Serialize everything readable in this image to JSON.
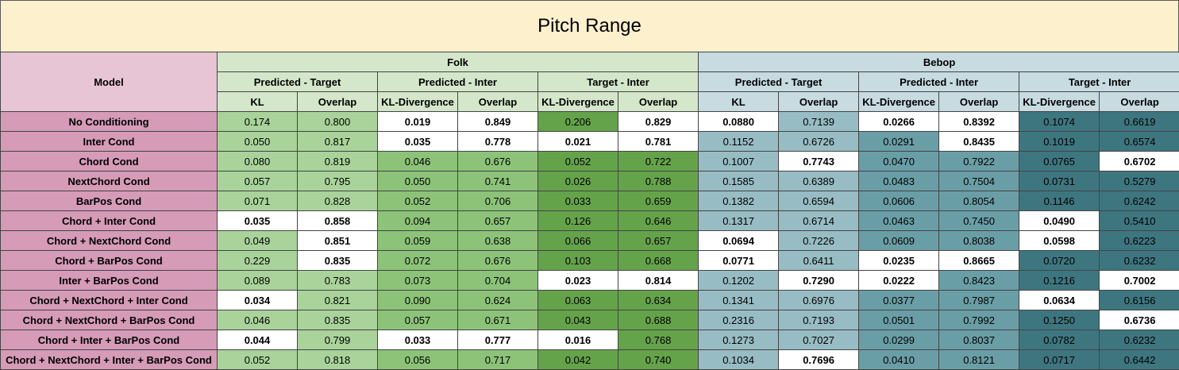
{
  "title": "Pitch Range",
  "header": {
    "model_label": "Model",
    "groups": [
      "Folk",
      "Bebop"
    ],
    "subgroups": [
      "Predicted - Target",
      "Predicted - Inter",
      "Target - Inter",
      "Predicted - Target",
      "Predicted - Inter",
      "Target - Inter"
    ],
    "metrics": [
      "KL",
      "Overlap",
      "KL-Divergence",
      "Overlap",
      "KL-Divergence",
      "Overlap",
      "KL",
      "Overlap",
      "KL-Divergence",
      "Overlap",
      "KL-Divergence",
      "Overlap"
    ]
  },
  "colors": {
    "title_bg": "#fdf0cd",
    "model_header_bg": "#e8c5d5",
    "model_cell_bg": "#d59bb7",
    "folk_header_bg": "#d4e7cb",
    "bebop_header_bg": "#c7dbe1",
    "column_fill": [
      "#a9d39b",
      "#a9d39b",
      "#8cc379",
      "#8cc379",
      "#65a34b",
      "#65a34b",
      "#98bcc4",
      "#98bcc4",
      "#6a9ea6",
      "#6a9ea6",
      "#3e7680",
      "#3e7680"
    ],
    "highlight": "#ffffff"
  },
  "rows": [
    {
      "model": "No Conditioning",
      "values": [
        "0.174",
        "0.800",
        "0.019",
        "0.849",
        "0.206",
        "0.829",
        "0.0880",
        "0.7139",
        "0.0266",
        "0.8392",
        "0.1074",
        "0.6619"
      ],
      "highlight": [
        false,
        false,
        true,
        true,
        false,
        true,
        true,
        false,
        true,
        true,
        false,
        false
      ]
    },
    {
      "model": "Inter Cond",
      "values": [
        "0.050",
        "0.817",
        "0.035",
        "0.778",
        "0.021",
        "0.781",
        "0.1152",
        "0.6726",
        "0.0291",
        "0.8435",
        "0.1019",
        "0.6574"
      ],
      "highlight": [
        false,
        false,
        true,
        true,
        true,
        true,
        false,
        false,
        false,
        true,
        false,
        false
      ]
    },
    {
      "model": "Chord Cond",
      "values": [
        "0.080",
        "0.819",
        "0.046",
        "0.676",
        "0.052",
        "0.722",
        "0.1007",
        "0.7743",
        "0.0470",
        "0.7922",
        "0.0765",
        "0.6702"
      ],
      "highlight": [
        false,
        false,
        false,
        false,
        false,
        false,
        false,
        true,
        false,
        false,
        false,
        true
      ]
    },
    {
      "model": "NextChord Cond",
      "values": [
        "0.057",
        "0.795",
        "0.050",
        "0.741",
        "0.026",
        "0.788",
        "0.1585",
        "0.6389",
        "0.0483",
        "0.7504",
        "0.0731",
        "0.5279"
      ],
      "highlight": [
        false,
        false,
        false,
        false,
        false,
        false,
        false,
        false,
        false,
        false,
        false,
        false
      ]
    },
    {
      "model": "BarPos Cond",
      "values": [
        "0.071",
        "0.828",
        "0.052",
        "0.706",
        "0.033",
        "0.659",
        "0.1382",
        "0.6594",
        "0.0606",
        "0.8054",
        "0.1146",
        "0.6242"
      ],
      "highlight": [
        false,
        false,
        false,
        false,
        false,
        false,
        false,
        false,
        false,
        false,
        false,
        false
      ]
    },
    {
      "model": "Chord + Inter Cond",
      "values": [
        "0.035",
        "0.858",
        "0.094",
        "0.657",
        "0.126",
        "0.646",
        "0.1317",
        "0.6714",
        "0.0463",
        "0.7450",
        "0.0490",
        "0.5410"
      ],
      "highlight": [
        true,
        true,
        false,
        false,
        false,
        false,
        false,
        false,
        false,
        false,
        true,
        false
      ]
    },
    {
      "model": "Chord + NextChord Cond",
      "values": [
        "0.049",
        "0.851",
        "0.059",
        "0.638",
        "0.066",
        "0.657",
        "0.0694",
        "0.7226",
        "0.0609",
        "0.8038",
        "0.0598",
        "0.6223"
      ],
      "highlight": [
        false,
        true,
        false,
        false,
        false,
        false,
        true,
        false,
        false,
        false,
        true,
        false
      ]
    },
    {
      "model": "Chord + BarPos Cond",
      "values": [
        "0.229",
        "0.835",
        "0.072",
        "0.676",
        "0.103",
        "0.668",
        "0.0771",
        "0.6411",
        "0.0235",
        "0.8665",
        "0.0720",
        "0.6232"
      ],
      "highlight": [
        false,
        true,
        false,
        false,
        false,
        false,
        true,
        false,
        true,
        true,
        false,
        false
      ]
    },
    {
      "model": "Inter + BarPos Cond",
      "values": [
        "0.089",
        "0.783",
        "0.073",
        "0.704",
        "0.023",
        "0.814",
        "0.1202",
        "0.7290",
        "0.0222",
        "0.8423",
        "0.1216",
        "0.7002"
      ],
      "highlight": [
        false,
        false,
        false,
        false,
        true,
        true,
        false,
        true,
        true,
        false,
        false,
        true
      ]
    },
    {
      "model": "Chord + NextChord + Inter Cond",
      "values": [
        "0.034",
        "0.821",
        "0.090",
        "0.624",
        "0.063",
        "0.634",
        "0.1341",
        "0.6976",
        "0.0377",
        "0.7987",
        "0.0634",
        "0.6156"
      ],
      "highlight": [
        true,
        false,
        false,
        false,
        false,
        false,
        false,
        false,
        false,
        false,
        true,
        false
      ]
    },
    {
      "model": "Chord + NextChord + BarPos Cond",
      "values": [
        "0.046",
        "0.835",
        "0.057",
        "0.671",
        "0.043",
        "0.688",
        "0.2316",
        "0.7193",
        "0.0501",
        "0.7992",
        "0.1250",
        "0.6736"
      ],
      "highlight": [
        false,
        false,
        false,
        false,
        false,
        false,
        false,
        false,
        false,
        false,
        false,
        true
      ]
    },
    {
      "model": "Chord + Inter + BarPos Cond",
      "values": [
        "0.044",
        "0.799",
        "0.033",
        "0.777",
        "0.016",
        "0.768",
        "0.1273",
        "0.7027",
        "0.0299",
        "0.8037",
        "0.0782",
        "0.6232"
      ],
      "highlight": [
        true,
        false,
        true,
        true,
        true,
        false,
        false,
        false,
        false,
        false,
        false,
        false
      ]
    },
    {
      "model": "Chord + NextChord + Inter + BarPos Cond",
      "values": [
        "0.052",
        "0.818",
        "0.056",
        "0.717",
        "0.042",
        "0.740",
        "0.1034",
        "0.7696",
        "0.0410",
        "0.8121",
        "0.0717",
        "0.6442"
      ],
      "highlight": [
        false,
        false,
        false,
        false,
        false,
        false,
        false,
        true,
        false,
        false,
        false,
        false
      ]
    }
  ]
}
